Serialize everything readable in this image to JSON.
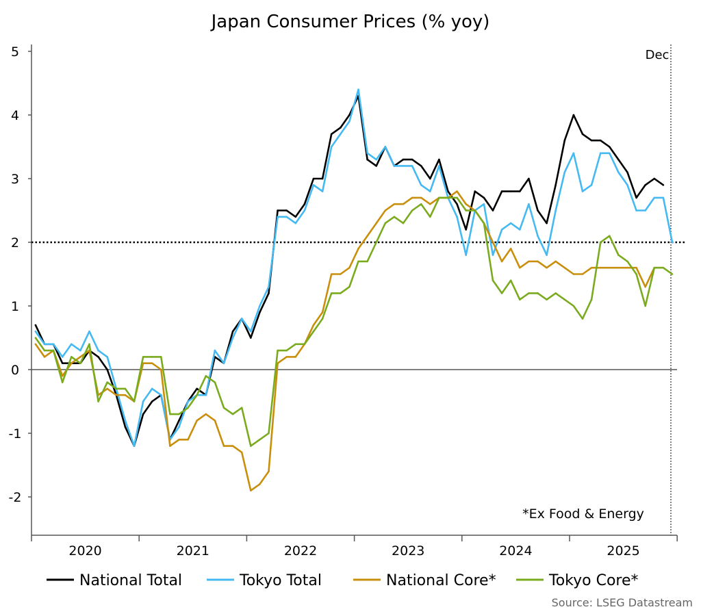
{
  "chart_data": {
    "type": "line",
    "title": "Japan Consumer Prices (% yoy)",
    "xlabel": "",
    "ylabel": "",
    "ylim": [
      -2.6,
      5
    ],
    "yticks": [
      "5",
      "4",
      "3",
      "2",
      "1",
      "0",
      "-1",
      "-2"
    ],
    "x_start": "2020-01",
    "x_end": "2025-12",
    "frequency": "monthly",
    "year_labels": [
      "2020",
      "2021",
      "2022",
      "2023",
      "2024",
      "2025"
    ],
    "reference_line": 2,
    "end_marker_label": "Dec",
    "annotation": "*Ex Food & Energy",
    "source": "Source: LSEG Datastream",
    "legend_position": "bottom",
    "grid": false,
    "series": [
      {
        "name": "National Total",
        "color": "#000000",
        "values": [
          0.7,
          0.4,
          0.4,
          0.1,
          0.1,
          0.1,
          0.3,
          0.2,
          0.0,
          -0.4,
          -0.9,
          -1.2,
          -0.7,
          -0.5,
          -0.4,
          -1.1,
          -0.8,
          -0.5,
          -0.3,
          -0.4,
          0.2,
          0.1,
          0.6,
          0.8,
          0.5,
          0.9,
          1.2,
          2.5,
          2.5,
          2.4,
          2.6,
          3.0,
          3.0,
          3.7,
          3.8,
          4.0,
          4.3,
          3.3,
          3.2,
          3.5,
          3.2,
          3.3,
          3.3,
          3.2,
          3.0,
          3.3,
          2.8,
          2.6,
          2.2,
          2.8,
          2.7,
          2.5,
          2.8,
          2.8,
          2.8,
          3.0,
          2.5,
          2.3,
          2.9,
          3.6,
          4.0,
          3.7,
          3.6,
          3.6,
          3.5,
          3.3,
          3.1,
          2.7,
          2.9,
          3.0,
          2.9
        ]
      },
      {
        "name": "Tokyo Total",
        "color": "#45b9f2",
        "values": [
          0.6,
          0.4,
          0.4,
          0.2,
          0.4,
          0.3,
          0.6,
          0.3,
          0.2,
          -0.3,
          -0.8,
          -1.2,
          -0.5,
          -0.3,
          -0.4,
          -1.1,
          -0.9,
          -0.5,
          -0.4,
          -0.4,
          0.3,
          0.1,
          0.5,
          0.8,
          0.6,
          1.0,
          1.3,
          2.4,
          2.4,
          2.3,
          2.5,
          2.9,
          2.8,
          3.5,
          3.7,
          3.9,
          4.4,
          3.4,
          3.3,
          3.5,
          3.2,
          3.2,
          3.2,
          2.9,
          2.8,
          3.2,
          2.7,
          2.4,
          1.8,
          2.5,
          2.6,
          1.8,
          2.2,
          2.3,
          2.2,
          2.6,
          2.1,
          1.8,
          2.5,
          3.1,
          3.4,
          2.8,
          2.9,
          3.4,
          3.4,
          3.1,
          2.9,
          2.5,
          2.5,
          2.7,
          2.7,
          2.0
        ]
      },
      {
        "name": "National Core*",
        "color": "#c98f0c",
        "values": [
          0.4,
          0.2,
          0.3,
          -0.1,
          0.1,
          0.2,
          0.3,
          -0.4,
          -0.3,
          -0.4,
          -0.4,
          -0.5,
          0.1,
          0.1,
          0.0,
          -1.2,
          -1.1,
          -1.1,
          -0.8,
          -0.7,
          -0.8,
          -1.2,
          -1.2,
          -1.3,
          -1.9,
          -1.8,
          -1.6,
          0.1,
          0.2,
          0.2,
          0.4,
          0.7,
          0.9,
          1.5,
          1.5,
          1.6,
          1.9,
          2.1,
          2.3,
          2.5,
          2.6,
          2.6,
          2.7,
          2.7,
          2.6,
          2.7,
          2.7,
          2.8,
          2.6,
          2.5,
          2.3,
          2.0,
          1.7,
          1.9,
          1.6,
          1.7,
          1.7,
          1.6,
          1.7,
          1.6,
          1.5,
          1.5,
          1.6,
          1.6,
          1.6,
          1.6,
          1.6,
          1.6,
          1.3,
          1.6,
          1.6
        ]
      },
      {
        "name": "Tokyo Core*",
        "color": "#7aab1e",
        "values": [
          0.5,
          0.3,
          0.3,
          -0.2,
          0.2,
          0.1,
          0.4,
          -0.5,
          -0.2,
          -0.3,
          -0.3,
          -0.5,
          0.2,
          0.2,
          0.2,
          -0.7,
          -0.7,
          -0.6,
          -0.4,
          -0.1,
          -0.2,
          -0.6,
          -0.7,
          -0.6,
          -1.2,
          -1.1,
          -1.0,
          0.3,
          0.3,
          0.4,
          0.4,
          0.6,
          0.8,
          1.2,
          1.2,
          1.3,
          1.7,
          1.7,
          2.0,
          2.3,
          2.4,
          2.3,
          2.5,
          2.6,
          2.4,
          2.7,
          2.7,
          2.7,
          2.5,
          2.5,
          2.3,
          1.4,
          1.2,
          1.4,
          1.1,
          1.2,
          1.2,
          1.1,
          1.2,
          1.1,
          1.0,
          0.8,
          1.1,
          2.0,
          2.1,
          1.8,
          1.7,
          1.5,
          1.0,
          1.6,
          1.6,
          1.5
        ]
      }
    ]
  }
}
